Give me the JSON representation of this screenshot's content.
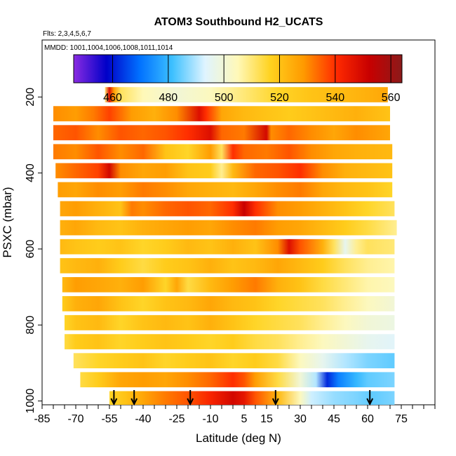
{
  "chart_data": {
    "type": "heatmap",
    "title": "ATOM3 Southbound H2_UCATS",
    "flights_note": "Flts: 2,3,4,5,6,7",
    "dates_note": "MMDD: 1001,1004,1006,1008,1011,1014",
    "xlabel": "Latitude (deg N)",
    "ylabel": "PSXC (mbar)",
    "xlim": [
      -85,
      90
    ],
    "ylim": [
      1010,
      50
    ],
    "y_reversed": true,
    "x_tick_labels": [
      "-85",
      "-70",
      "-55",
      "-40",
      "-25",
      "-10",
      "5",
      "15",
      "30",
      "45",
      "60",
      "75"
    ],
    "x_tick_values": [
      -85,
      -70,
      -55,
      -40,
      -25,
      -10,
      5,
      15,
      30,
      45,
      60,
      75
    ],
    "y_tick_labels": [
      "200",
      "400",
      "600",
      "800",
      "1000"
    ],
    "y_tick_values": [
      200,
      400,
      600,
      800,
      1000
    ],
    "colorbar": {
      "min": 446,
      "max": 564,
      "tick_labels": [
        "460",
        "480",
        "500",
        "520",
        "540",
        "560"
      ],
      "tick_values": [
        460,
        480,
        500,
        520,
        540,
        560
      ],
      "colors": [
        "#8a2be2",
        "#0000c8",
        "#0070ff",
        "#3cc0ff",
        "#dff4ff",
        "#fff8b8",
        "#ffd21e",
        "#ff9a00",
        "#ff2a00",
        "#c80000",
        "#8b1a1a"
      ]
    },
    "levels": [
      {
        "p": 200,
        "lat_start": -57,
        "lat_end": 69,
        "base": 508,
        "segments": [
          [
            -57,
            510
          ],
          [
            -55,
            548
          ],
          [
            -53,
            528
          ],
          [
            -50,
            512
          ],
          [
            -40,
            505
          ],
          [
            -25,
            500
          ],
          [
            -10,
            504
          ],
          [
            5,
            510
          ],
          [
            20,
            516
          ],
          [
            35,
            520
          ],
          [
            50,
            522
          ],
          [
            60,
            524
          ],
          [
            69,
            526
          ]
        ]
      },
      {
        "p": 250,
        "lat_start": -80,
        "lat_end": 70,
        "segments": [
          [
            -80,
            530
          ],
          [
            -70,
            528
          ],
          [
            -62,
            532
          ],
          [
            -55,
            538
          ],
          [
            -45,
            528
          ],
          [
            -35,
            524
          ],
          [
            -25,
            530
          ],
          [
            -15,
            548
          ],
          [
            -12,
            540
          ],
          [
            -5,
            526
          ],
          [
            5,
            522
          ],
          [
            15,
            520
          ],
          [
            25,
            518
          ],
          [
            35,
            520
          ],
          [
            45,
            522
          ],
          [
            55,
            524
          ],
          [
            70,
            520
          ]
        ]
      },
      {
        "p": 300,
        "lat_start": -80,
        "lat_end": 70,
        "segments": [
          [
            -80,
            534
          ],
          [
            -70,
            536
          ],
          [
            -60,
            530
          ],
          [
            -50,
            536
          ],
          [
            -40,
            534
          ],
          [
            -30,
            536
          ],
          [
            -20,
            540
          ],
          [
            -10,
            548
          ],
          [
            -5,
            534
          ],
          [
            5,
            532
          ],
          [
            15,
            550
          ],
          [
            17,
            530
          ],
          [
            25,
            534
          ],
          [
            35,
            530
          ],
          [
            45,
            526
          ],
          [
            55,
            530
          ],
          [
            70,
            526
          ]
        ]
      },
      {
        "p": 350,
        "lat_start": -80,
        "lat_end": 71,
        "segments": [
          [
            -80,
            532
          ],
          [
            -70,
            530
          ],
          [
            -60,
            536
          ],
          [
            -50,
            530
          ],
          [
            -40,
            534
          ],
          [
            -30,
            520
          ],
          [
            -20,
            516
          ],
          [
            -10,
            528
          ],
          [
            -5,
            512
          ],
          [
            0,
            540
          ],
          [
            5,
            534
          ],
          [
            15,
            532
          ],
          [
            25,
            536
          ],
          [
            35,
            530
          ],
          [
            45,
            526
          ],
          [
            55,
            524
          ],
          [
            71,
            522
          ]
        ]
      },
      {
        "p": 400,
        "lat_start": -79,
        "lat_end": 71,
        "segments": [
          [
            -79,
            530
          ],
          [
            -70,
            534
          ],
          [
            -60,
            538
          ],
          [
            -55,
            550
          ],
          [
            -50,
            530
          ],
          [
            -40,
            526
          ],
          [
            -30,
            528
          ],
          [
            -20,
            520
          ],
          [
            -10,
            518
          ],
          [
            -5,
            508
          ],
          [
            0,
            522
          ],
          [
            10,
            534
          ],
          [
            20,
            536
          ],
          [
            30,
            540
          ],
          [
            40,
            530
          ],
          [
            50,
            524
          ],
          [
            60,
            522
          ],
          [
            71,
            520
          ]
        ]
      },
      {
        "p": 450,
        "lat_start": -78,
        "lat_end": 71,
        "segments": [
          [
            -78,
            528
          ],
          [
            -70,
            526
          ],
          [
            -60,
            530
          ],
          [
            -50,
            528
          ],
          [
            -40,
            532
          ],
          [
            -30,
            530
          ],
          [
            -20,
            526
          ],
          [
            -10,
            524
          ],
          [
            0,
            522
          ],
          [
            10,
            526
          ],
          [
            20,
            530
          ],
          [
            30,
            532
          ],
          [
            40,
            526
          ],
          [
            50,
            522
          ],
          [
            60,
            520
          ],
          [
            71,
            516
          ]
        ]
      },
      {
        "p": 500,
        "lat_start": -77,
        "lat_end": 72,
        "segments": [
          [
            -77,
            526
          ],
          [
            -70,
            528
          ],
          [
            -60,
            524
          ],
          [
            -50,
            520
          ],
          [
            -45,
            532
          ],
          [
            -40,
            530
          ],
          [
            -30,
            534
          ],
          [
            -20,
            536
          ],
          [
            -10,
            534
          ],
          [
            0,
            540
          ],
          [
            5,
            552
          ],
          [
            10,
            540
          ],
          [
            20,
            530
          ],
          [
            30,
            528
          ],
          [
            40,
            524
          ],
          [
            50,
            520
          ],
          [
            60,
            516
          ],
          [
            72,
            512
          ]
        ]
      },
      {
        "p": 550,
        "lat_start": -77,
        "lat_end": 73,
        "segments": [
          [
            -77,
            524
          ],
          [
            -70,
            526
          ],
          [
            -60,
            522
          ],
          [
            -50,
            520
          ],
          [
            -40,
            524
          ],
          [
            -30,
            526
          ],
          [
            -20,
            528
          ],
          [
            -10,
            526
          ],
          [
            0,
            530
          ],
          [
            10,
            532
          ],
          [
            20,
            528
          ],
          [
            30,
            526
          ],
          [
            40,
            522
          ],
          [
            50,
            518
          ],
          [
            60,
            514
          ],
          [
            73,
            508
          ]
        ]
      },
      {
        "p": 600,
        "lat_start": -77,
        "lat_end": 72,
        "segments": [
          [
            -77,
            522
          ],
          [
            -70,
            520
          ],
          [
            -60,
            518
          ],
          [
            -50,
            520
          ],
          [
            -40,
            516
          ],
          [
            -30,
            518
          ],
          [
            -20,
            522
          ],
          [
            -10,
            520
          ],
          [
            0,
            524
          ],
          [
            10,
            520
          ],
          [
            20,
            530
          ],
          [
            25,
            548
          ],
          [
            30,
            536
          ],
          [
            40,
            524
          ],
          [
            45,
            512
          ],
          [
            50,
            496
          ],
          [
            55,
            508
          ],
          [
            60,
            512
          ],
          [
            72,
            510
          ]
        ]
      },
      {
        "p": 650,
        "lat_start": -77,
        "lat_end": 72,
        "segments": [
          [
            -77,
            520
          ],
          [
            -70,
            522
          ],
          [
            -60,
            524
          ],
          [
            -50,
            518
          ],
          [
            -40,
            514
          ],
          [
            -30,
            518
          ],
          [
            -20,
            520
          ],
          [
            -10,
            524
          ],
          [
            0,
            520
          ],
          [
            10,
            522
          ],
          [
            20,
            526
          ],
          [
            30,
            522
          ],
          [
            40,
            518
          ],
          [
            50,
            512
          ],
          [
            60,
            508
          ],
          [
            72,
            506
          ]
        ]
      },
      {
        "p": 700,
        "lat_start": -76,
        "lat_end": 72,
        "segments": [
          [
            -76,
            522
          ],
          [
            -70,
            528
          ],
          [
            -60,
            526
          ],
          [
            -50,
            524
          ],
          [
            -40,
            528
          ],
          [
            -30,
            516
          ],
          [
            -25,
            526
          ],
          [
            -20,
            514
          ],
          [
            -10,
            522
          ],
          [
            0,
            528
          ],
          [
            10,
            532
          ],
          [
            20,
            524
          ],
          [
            30,
            520
          ],
          [
            40,
            514
          ],
          [
            50,
            510
          ],
          [
            60,
            506
          ],
          [
            72,
            504
          ]
        ]
      },
      {
        "p": 750,
        "lat_start": -76,
        "lat_end": 72,
        "segments": [
          [
            -76,
            518
          ],
          [
            -70,
            524
          ],
          [
            -60,
            526
          ],
          [
            -50,
            520
          ],
          [
            -40,
            516
          ],
          [
            -30,
            520
          ],
          [
            -20,
            522
          ],
          [
            -10,
            526
          ],
          [
            0,
            522
          ],
          [
            10,
            520
          ],
          [
            20,
            516
          ],
          [
            30,
            514
          ],
          [
            40,
            512
          ],
          [
            50,
            508
          ],
          [
            60,
            504
          ],
          [
            72,
            500
          ]
        ]
      },
      {
        "p": 800,
        "lat_start": -75,
        "lat_end": 72,
        "segments": [
          [
            -75,
            516
          ],
          [
            -70,
            520
          ],
          [
            -60,
            522
          ],
          [
            -50,
            516
          ],
          [
            -40,
            520
          ],
          [
            -30,
            522
          ],
          [
            -20,
            520
          ],
          [
            -10,
            524
          ],
          [
            0,
            520
          ],
          [
            10,
            516
          ],
          [
            20,
            514
          ],
          [
            30,
            512
          ],
          [
            40,
            508
          ],
          [
            50,
            504
          ],
          [
            60,
            500
          ],
          [
            72,
            498
          ]
        ]
      },
      {
        "p": 850,
        "lat_start": -75,
        "lat_end": 72,
        "segments": [
          [
            -75,
            514
          ],
          [
            -70,
            518
          ],
          [
            -60,
            520
          ],
          [
            -50,
            516
          ],
          [
            -40,
            518
          ],
          [
            -30,
            520
          ],
          [
            -20,
            518
          ],
          [
            -10,
            516
          ],
          [
            0,
            518
          ],
          [
            10,
            514
          ],
          [
            20,
            512
          ],
          [
            30,
            508
          ],
          [
            40,
            504
          ],
          [
            50,
            500
          ],
          [
            60,
            496
          ],
          [
            72,
            494
          ]
        ]
      },
      {
        "p": 900,
        "lat_start": -71,
        "lat_end": 72,
        "segments": [
          [
            -71,
            512
          ],
          [
            -60,
            516
          ],
          [
            -50,
            518
          ],
          [
            -40,
            520
          ],
          [
            -30,
            516
          ],
          [
            -20,
            518
          ],
          [
            -10,
            520
          ],
          [
            0,
            516
          ],
          [
            10,
            518
          ],
          [
            20,
            514
          ],
          [
            30,
            504
          ],
          [
            40,
            496
          ],
          [
            50,
            490
          ],
          [
            60,
            486
          ],
          [
            72,
            484
          ]
        ]
      },
      {
        "p": 950,
        "lat_start": -68,
        "lat_end": 72,
        "segments": [
          [
            -68,
            514
          ],
          [
            -60,
            518
          ],
          [
            -50,
            526
          ],
          [
            -40,
            528
          ],
          [
            -30,
            526
          ],
          [
            -20,
            530
          ],
          [
            -10,
            534
          ],
          [
            0,
            540
          ],
          [
            5,
            536
          ],
          [
            10,
            528
          ],
          [
            20,
            514
          ],
          [
            30,
            500
          ],
          [
            37,
            490
          ],
          [
            42,
            462
          ],
          [
            47,
            472
          ],
          [
            55,
            480
          ],
          [
            60,
            484
          ],
          [
            72,
            486
          ]
        ]
      },
      {
        "p": 1000,
        "lat_start": -55,
        "lat_end": 72,
        "segments": [
          [
            -55,
            516
          ],
          [
            -48,
            520
          ],
          [
            -40,
            526
          ],
          [
            -30,
            532
          ],
          [
            -20,
            536
          ],
          [
            -10,
            542
          ],
          [
            0,
            550
          ],
          [
            5,
            546
          ],
          [
            10,
            536
          ],
          [
            20,
            522
          ],
          [
            30,
            504
          ],
          [
            35,
            492
          ],
          [
            45,
            488
          ],
          [
            55,
            486
          ],
          [
            62,
            484
          ],
          [
            72,
            486
          ]
        ]
      }
    ],
    "arrows_lat": [
      -53,
      -44,
      -19,
      19,
      61
    ]
  }
}
